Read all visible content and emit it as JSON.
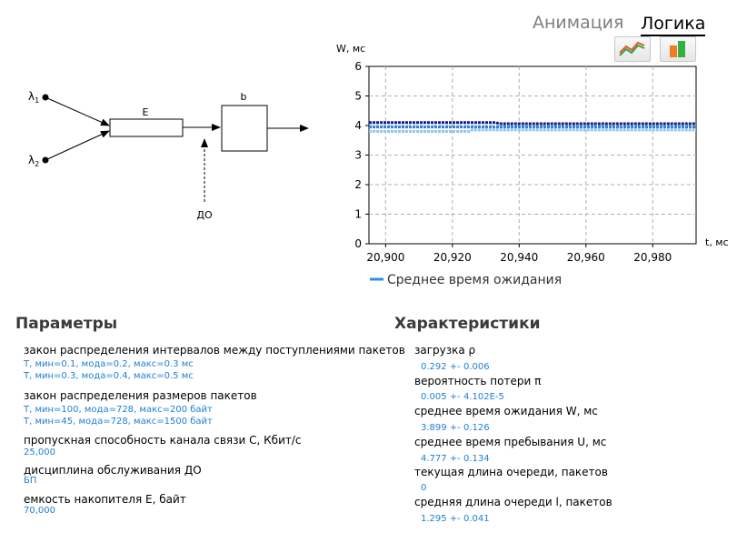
{
  "tabs": {
    "animation": "Анимация",
    "logic": "Логика"
  },
  "toolbar": {
    "line_chart_icon": "line-chart-icon",
    "bar_chart_icon": "bar-chart-icon"
  },
  "diagram": {
    "lambda1": "λ",
    "lambda1_sub": "1",
    "lambda2": "λ",
    "lambda2_sub": "2",
    "buffer_label": "E",
    "server_label": "b",
    "discipline_label": "ДО"
  },
  "chart_data": {
    "type": "line",
    "ylabel": "W, мс",
    "xlabel": "t, мс",
    "ylim": [
      0,
      6
    ],
    "xlim": [
      20895,
      20993
    ],
    "yticks": [
      "0",
      "1",
      "2",
      "3",
      "4",
      "5",
      "6"
    ],
    "xticks": [
      {
        "value": 20900,
        "label": "20,900"
      },
      {
        "value": 20920,
        "label": "20,920"
      },
      {
        "value": 20940,
        "label": "20,940"
      },
      {
        "value": 20960,
        "label": "20,960"
      },
      {
        "value": 20980,
        "label": "20,980"
      }
    ],
    "grid": true,
    "legend": "bottom",
    "legend_label": "Среднее время ожидания",
    "series": [
      {
        "color": "#0b1e8c",
        "points": [
          [
            20895,
            4.1
          ],
          [
            20933,
            4.1
          ],
          [
            20934,
            4.06
          ],
          [
            20993,
            4.06
          ]
        ]
      },
      {
        "color": "#2f7fd9",
        "points": [
          [
            20895,
            3.95
          ],
          [
            20993,
            3.95
          ]
        ]
      },
      {
        "color": "#8cc8ee",
        "points": [
          [
            20895,
            3.8
          ],
          [
            20925,
            3.8
          ],
          [
            20926,
            3.85
          ],
          [
            20993,
            3.85
          ]
        ]
      }
    ],
    "colors": {
      "mean": "#2f8ee8"
    }
  },
  "params": {
    "title": "Параметры",
    "items": [
      {
        "label": "закон распределения интервалов между поступлениями пакетов",
        "values": [
          "Т, мин=0.1, мода=0.2, макс=0.3 мс",
          "Т, мин=0.3, мода=0.4, макс=0.5 мс"
        ]
      },
      {
        "label": "закон распределения размеров пакетов",
        "values": [
          "Т, мин=100, мода=728, макс=200 байт",
          "Т, мин=45, мода=728, макс=1500 байт"
        ]
      },
      {
        "label": "пропускная способность канала связи C, Кбит/с",
        "values": [
          "25,000"
        ]
      },
      {
        "label": "дисциплина обслуживания ДО",
        "values": [
          "БП"
        ]
      },
      {
        "label": "емкость накопителя E, байт",
        "values": [
          "70,000"
        ]
      }
    ]
  },
  "chars": {
    "title": "Характеристики",
    "items": [
      {
        "label": "загрузка ρ",
        "value": "0.292  +-  0.006"
      },
      {
        "label": "вероятность потери π",
        "value": "0.005  +-  4.102E-5"
      },
      {
        "label": "среднее время ожидания W, мс",
        "value": "3.899  +-  0.126"
      },
      {
        "label": "среднее время пребывания U, мс",
        "value": "4.777  +-  0.134"
      },
      {
        "label": "текущая длина очереди, пакетов",
        "value": "0"
      },
      {
        "label": "средняя длина очереди l, пакетов",
        "value": "1.295  +-  0.041"
      }
    ]
  }
}
